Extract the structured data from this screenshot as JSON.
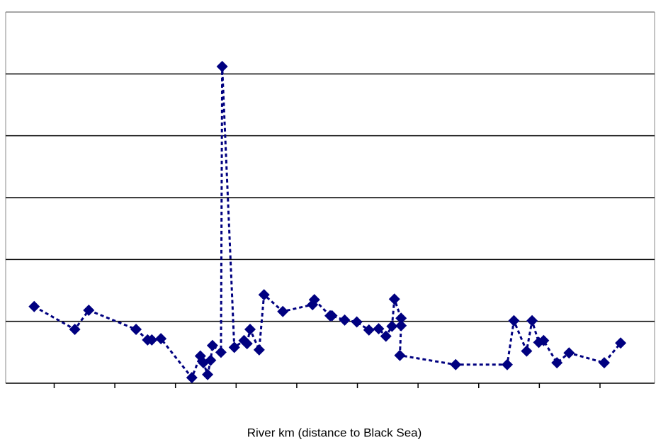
{
  "chart_data": {
    "type": "scatter",
    "xlabel": "River km (distance to Black Sea)",
    "x": [
      0.47,
      1.14,
      1.37,
      2.15,
      2.34,
      2.41,
      2.56,
      3.07,
      3.21,
      3.26,
      3.33,
      3.38,
      3.41,
      3.55,
      3.57,
      3.77,
      3.93,
      3.98,
      4.03,
      4.18,
      4.26,
      4.57,
      5.06,
      5.09,
      5.35,
      5.38,
      5.59,
      5.79,
      5.99,
      6.15,
      6.27,
      6.37,
      6.41,
      6.52,
      6.52,
      6.5,
      7.42,
      8.27,
      8.38,
      8.59,
      8.68,
      8.79,
      8.87,
      9.09,
      9.29,
      9.87,
      10.14
    ],
    "values": [
      1.24,
      0.87,
      1.18,
      0.87,
      0.7,
      0.7,
      0.72,
      0.09,
      0.44,
      0.33,
      0.14,
      0.37,
      0.61,
      0.5,
      5.12,
      0.58,
      0.69,
      0.64,
      0.87,
      0.54,
      1.43,
      1.16,
      1.27,
      1.35,
      1.09,
      1.09,
      1.02,
      0.99,
      0.86,
      0.88,
      0.76,
      0.92,
      1.36,
      1.05,
      0.93,
      0.45,
      0.3,
      0.3,
      1.01,
      0.52,
      1.01,
      0.66,
      0.69,
      0.33,
      0.49,
      0.33,
      0.65
    ],
    "color": "#000080",
    "connect": true,
    "xlim": [
      0,
      10.7
    ],
    "xticks": [
      0.8,
      1.8,
      2.8,
      3.8,
      4.8,
      5.8,
      6.8,
      7.8,
      8.8,
      9.8
    ],
    "ylim": [
      0,
      6
    ],
    "yticks": [
      0,
      1,
      2,
      3,
      4,
      5,
      6
    ],
    "grid": true
  }
}
